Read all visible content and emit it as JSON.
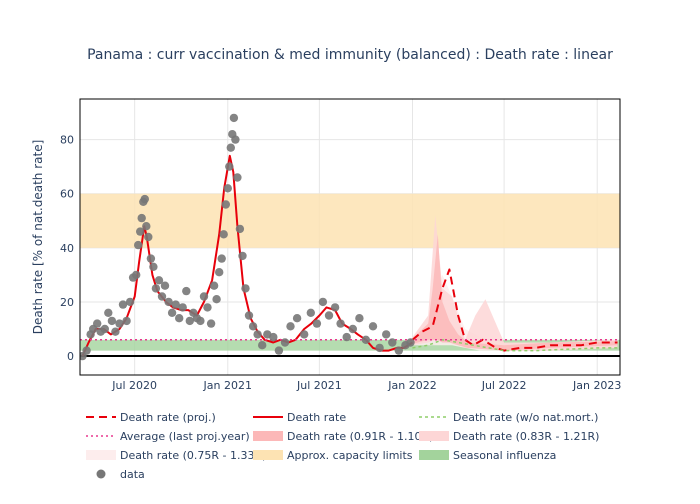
{
  "chart_data": {
    "type": "line",
    "title": "Panama : curr vaccination & med immunity (balanced) : Death rate : linear",
    "xlabel": "",
    "ylabel": "Death rate [% of nat.death rate]",
    "x_start": "2020-03-15",
    "x_end": "2023-02-15",
    "ylim": [
      -7,
      95
    ],
    "yticks": [
      0,
      20,
      40,
      60,
      80
    ],
    "xticks": [
      {
        "date": "2020-07-01",
        "label": "Jul 2020"
      },
      {
        "date": "2021-01-01",
        "label": "Jan 2021"
      },
      {
        "date": "2021-07-01",
        "label": "Jul 2021"
      },
      {
        "date": "2022-01-01",
        "label": "Jan 2022"
      },
      {
        "date": "2022-07-01",
        "label": "Jul 2022"
      },
      {
        "date": "2023-01-01",
        "label": "Jan 2023"
      }
    ],
    "grid": true,
    "legend_position": "bottom",
    "colors": {
      "projection": "#e8000b",
      "death_rate": "#e8000b",
      "wo_natmort": "#8fce6a",
      "average": "#e8388f",
      "capacity": "#fde3b3",
      "seasonal": "#a3d39c",
      "data_points": "#777777",
      "band_1": "#fcb8b8",
      "band_2": "#fdd6d6",
      "band_3": "#fdeded"
    },
    "capacity_band": [
      40,
      60
    ],
    "seasonal_band": [
      2,
      6
    ],
    "average_level": 6,
    "series": [
      {
        "name": "Death rate",
        "x": [
          "2020-03-20",
          "2020-04-01",
          "2020-04-15",
          "2020-05-01",
          "2020-05-15",
          "2020-06-01",
          "2020-06-15",
          "2020-07-01",
          "2020-07-10",
          "2020-07-20",
          "2020-07-25",
          "2020-08-05",
          "2020-08-15",
          "2020-09-01",
          "2020-09-15",
          "2020-10-01",
          "2020-10-15",
          "2020-11-01",
          "2020-11-15",
          "2020-12-01",
          "2020-12-15",
          "2020-12-25",
          "2021-01-05",
          "2021-01-12",
          "2021-01-20",
          "2021-02-01",
          "2021-02-15",
          "2021-03-01",
          "2021-03-15",
          "2021-04-01",
          "2021-04-15",
          "2021-05-01",
          "2021-05-15",
          "2021-06-01",
          "2021-06-15",
          "2021-07-01",
          "2021-07-15",
          "2021-08-01",
          "2021-08-15",
          "2021-09-01",
          "2021-09-15",
          "2021-10-01",
          "2021-10-15",
          "2021-11-01",
          "2021-11-15",
          "2021-12-01",
          "2021-12-15",
          "2022-01-01"
        ],
        "y": [
          0,
          5,
          10,
          10,
          8,
          10,
          14,
          22,
          35,
          48,
          44,
          30,
          24,
          20,
          18,
          17,
          17,
          15,
          20,
          28,
          45,
          62,
          74,
          68,
          48,
          25,
          14,
          9,
          6,
          5,
          6,
          5,
          6,
          10,
          12,
          15,
          18,
          17,
          12,
          10,
          8,
          6,
          3,
          2,
          2,
          3,
          3,
          5
        ]
      },
      {
        "name": "Death rate (proj.)",
        "x": [
          "2022-01-01",
          "2022-01-20",
          "2022-02-10",
          "2022-03-01",
          "2022-03-15",
          "2022-04-01",
          "2022-04-15",
          "2022-05-01",
          "2022-05-20",
          "2022-06-15",
          "2022-07-01",
          "2022-08-01",
          "2022-09-01",
          "2022-10-01",
          "2022-11-01",
          "2022-12-01",
          "2023-01-01",
          "2023-02-10"
        ],
        "y": [
          6,
          9,
          11,
          25,
          32,
          15,
          6,
          4,
          6,
          3,
          2,
          3,
          3,
          4,
          4,
          4,
          5,
          5
        ]
      },
      {
        "name": "Death rate (w/o nat.mort.)",
        "x": [
          "2022-01-01",
          "2022-02-01",
          "2022-03-01",
          "2022-04-01",
          "2022-05-01",
          "2022-06-01",
          "2022-07-01",
          "2022-09-01",
          "2022-11-01",
          "2023-01-01",
          "2023-02-10"
        ],
        "y": [
          3,
          4,
          6,
          5,
          4,
          3,
          2,
          2,
          2.5,
          3,
          3
        ]
      },
      {
        "name": "Average (last proj.year)",
        "x": [
          "2020-03-15",
          "2023-02-15"
        ],
        "y": [
          6,
          6
        ]
      }
    ],
    "bands": [
      {
        "name": "Death rate (0.75R - 1.33R)",
        "x": [
          "2022-01-01",
          "2022-02-01",
          "2022-03-01",
          "2022-03-20",
          "2022-04-15",
          "2022-05-15",
          "2022-07-01",
          "2022-10-01",
          "2023-02-10"
        ],
        "upper": [
          7,
          12,
          30,
          22,
          10,
          7,
          5,
          5,
          6
        ],
        "lower": [
          4,
          4,
          4,
          4,
          3,
          2,
          2,
          2,
          3
        ]
      },
      {
        "name": "Death rate (0.83R - 1.21R)",
        "x": [
          "2022-01-01",
          "2022-02-01",
          "2022-02-15",
          "2022-03-01",
          "2022-03-20",
          "2022-04-15",
          "2022-05-05",
          "2022-05-25",
          "2022-07-01",
          "2022-10-01",
          "2023-02-10"
        ],
        "upper": [
          7,
          15,
          52,
          25,
          22,
          6,
          15,
          21,
          5,
          5,
          6
        ],
        "lower": [
          4,
          5,
          6,
          5,
          6,
          3,
          3,
          4,
          2,
          2,
          3
        ]
      },
      {
        "name": "Death rate (0.91R - 1.10R)",
        "x": [
          "2022-01-01",
          "2022-02-01",
          "2022-02-10",
          "2022-02-20",
          "2022-03-01",
          "2022-03-15",
          "2022-04-01",
          "2022-04-20",
          "2022-07-01",
          "2022-10-01",
          "2023-02-10"
        ],
        "upper": [
          6.5,
          12,
          25,
          45,
          20,
          13,
          8,
          5,
          4,
          5,
          5.5
        ],
        "lower": [
          4.5,
          6,
          6,
          6,
          5,
          5,
          4,
          3,
          2,
          3,
          4
        ]
      }
    ],
    "scatter": {
      "name": "data",
      "x": [
        "2020-03-20",
        "2020-03-28",
        "2020-04-05",
        "2020-04-10",
        "2020-04-18",
        "2020-04-25",
        "2020-05-03",
        "2020-05-10",
        "2020-05-17",
        "2020-05-24",
        "2020-06-01",
        "2020-06-08",
        "2020-06-15",
        "2020-06-22",
        "2020-06-28",
        "2020-07-04",
        "2020-07-08",
        "2020-07-12",
        "2020-07-15",
        "2020-07-18",
        "2020-07-21",
        "2020-07-24",
        "2020-07-28",
        "2020-08-02",
        "2020-08-07",
        "2020-08-12",
        "2020-08-18",
        "2020-08-24",
        "2020-08-30",
        "2020-09-06",
        "2020-09-13",
        "2020-09-20",
        "2020-09-27",
        "2020-10-04",
        "2020-10-11",
        "2020-10-18",
        "2020-10-25",
        "2020-11-01",
        "2020-11-08",
        "2020-11-15",
        "2020-11-22",
        "2020-11-29",
        "2020-12-05",
        "2020-12-10",
        "2020-12-15",
        "2020-12-20",
        "2020-12-24",
        "2020-12-28",
        "2021-01-01",
        "2021-01-04",
        "2021-01-07",
        "2021-01-10",
        "2021-01-13",
        "2021-01-16",
        "2021-01-20",
        "2021-01-25",
        "2021-01-30",
        "2021-02-05",
        "2021-02-12",
        "2021-02-20",
        "2021-03-01",
        "2021-03-10",
        "2021-03-20",
        "2021-04-01",
        "2021-04-12",
        "2021-04-24",
        "2021-05-05",
        "2021-05-18",
        "2021-06-01",
        "2021-06-14",
        "2021-06-26",
        "2021-07-08",
        "2021-07-20",
        "2021-08-01",
        "2021-08-12",
        "2021-08-24",
        "2021-09-05",
        "2021-09-18",
        "2021-10-01",
        "2021-10-15",
        "2021-10-28",
        "2021-11-10",
        "2021-11-22",
        "2021-12-05",
        "2021-12-18",
        "2021-12-28"
      ],
      "y": [
        0,
        2,
        8,
        10,
        12,
        9,
        10,
        16,
        13,
        9,
        12,
        19,
        13,
        20,
        29,
        30,
        41,
        46,
        51,
        57,
        58,
        48,
        44,
        36,
        33,
        25,
        28,
        22,
        26,
        20,
        16,
        19,
        14,
        18,
        24,
        13,
        16,
        14,
        13,
        22,
        18,
        12,
        26,
        21,
        31,
        36,
        45,
        56,
        62,
        70,
        77,
        82,
        88,
        80,
        66,
        47,
        37,
        25,
        15,
        11,
        8,
        4,
        8,
        7,
        2,
        5,
        11,
        14,
        8,
        16,
        12,
        20,
        15,
        18,
        12,
        7,
        10,
        14,
        6,
        11,
        3,
        8,
        5,
        2,
        4,
        5
      ]
    }
  },
  "legend": {
    "items": [
      {
        "label": "Death rate (proj.)",
        "kind": "dash"
      },
      {
        "label": "Death rate",
        "kind": "line"
      },
      {
        "label": "Death rate (w/o nat.mort.)",
        "kind": "dot"
      },
      {
        "label": "Average (last proj.year)",
        "kind": "dotted"
      },
      {
        "label": "Death rate (0.91R - 1.10R)",
        "kind": "band1"
      },
      {
        "label": "Death rate (0.83R - 1.21R)",
        "kind": "band2"
      },
      {
        "label": "Death rate (0.75R - 1.33R)",
        "kind": "band3"
      },
      {
        "label": "Approx. capacity limits",
        "kind": "capacity"
      },
      {
        "label": "Seasonal influenza",
        "kind": "seasonal"
      },
      {
        "label": "data",
        "kind": "marker"
      }
    ]
  }
}
